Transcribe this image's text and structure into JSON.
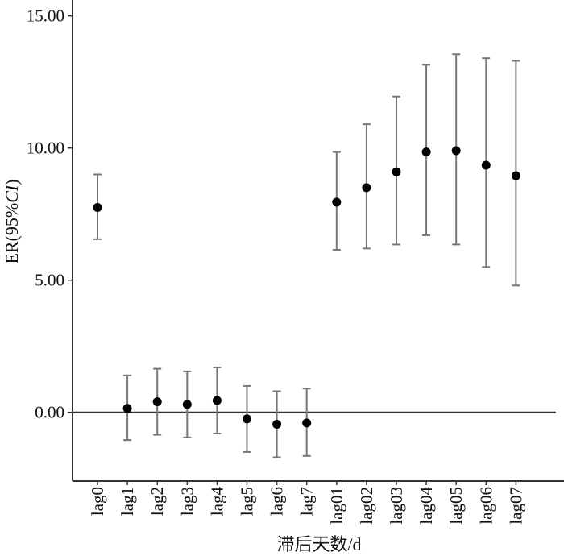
{
  "chart_data": {
    "type": "scatter",
    "subtype": "point-with-error-bars",
    "title": "",
    "xlabel": "滞后天数/d",
    "ylabel_main": "ER(95%",
    "ylabel_italic": "CI",
    "ylabel_close": ")",
    "ylim": [
      -2.6,
      15.6
    ],
    "yticks": [
      0,
      5,
      10,
      15
    ],
    "ytick_labels": [
      "0.00",
      "5.00",
      "10.00",
      "15.00"
    ],
    "reference_line_y": 0,
    "grid": false,
    "categories": [
      "lag0",
      "lag1",
      "lag2",
      "lag3",
      "lag4",
      "lag5",
      "lag6",
      "lag7",
      "lag01",
      "lag02",
      "lag03",
      "lag04",
      "lag05",
      "lag06",
      "lag07"
    ],
    "series": [
      {
        "estimate": [
          7.75,
          0.15,
          0.4,
          0.3,
          0.45,
          -0.25,
          -0.45,
          -0.4,
          7.95,
          8.5,
          9.1,
          9.85,
          9.9,
          9.35,
          8.95
        ],
        "lower": [
          6.55,
          -1.05,
          -0.85,
          -0.95,
          -0.8,
          -1.5,
          -1.7,
          -1.65,
          6.15,
          6.2,
          6.35,
          6.7,
          6.35,
          5.5,
          4.8
        ],
        "upper": [
          9.0,
          1.4,
          1.65,
          1.55,
          1.7,
          1.0,
          0.8,
          0.9,
          9.85,
          10.9,
          11.95,
          13.15,
          13.55,
          13.4,
          13.3
        ]
      }
    ],
    "colors": {
      "point": "#000000",
      "error_bar": "#777777",
      "axis": "#333333",
      "reference_line": "#333333"
    }
  }
}
